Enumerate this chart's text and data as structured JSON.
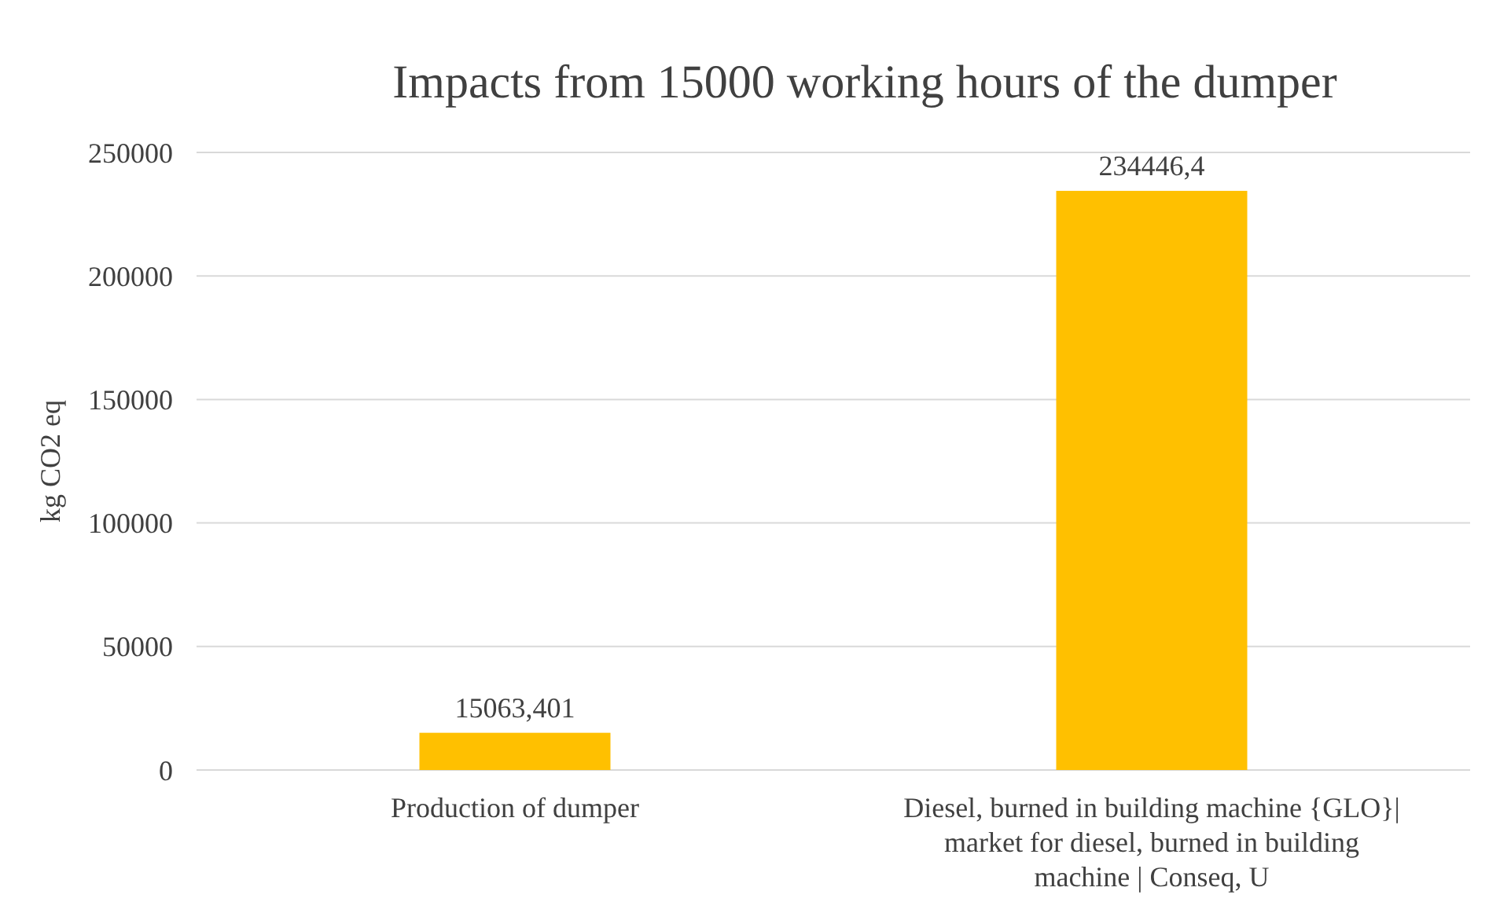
{
  "chart_data": {
    "type": "bar",
    "title": "Impacts from 15000 working hours of the dumper",
    "ylabel": "kg CO2 eq",
    "categories": [
      "Production of dumper",
      "Diesel, burned in building machine {GLO}| market for diesel, burned in building machine | Conseq, U"
    ],
    "values": [
      15063.401,
      234446.4
    ],
    "value_labels": [
      "15063,401",
      "234446,4"
    ],
    "color": "#ffc000",
    "ylim": [
      0,
      250000
    ],
    "yticks": [
      0,
      50000,
      100000,
      150000,
      200000,
      250000
    ],
    "grid": "y"
  }
}
